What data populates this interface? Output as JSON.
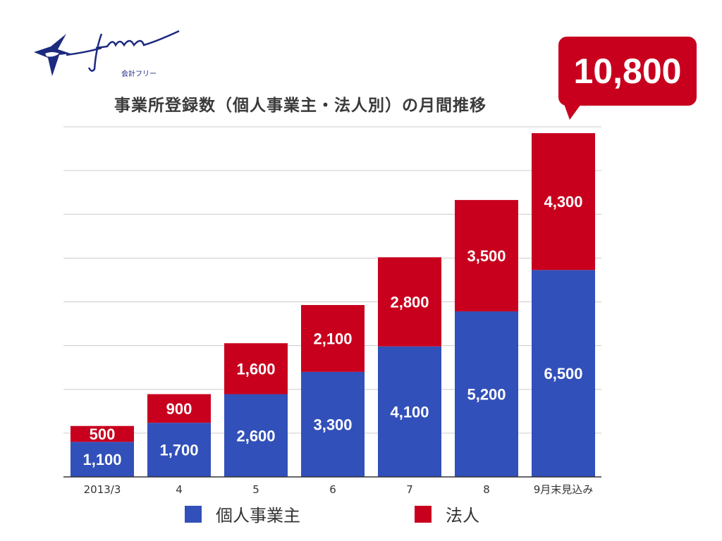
{
  "logo": {
    "text": "freee",
    "subtitle": "会計フリー"
  },
  "callout": {
    "value": "10,800"
  },
  "colors": {
    "individual": "#3250b9",
    "corporate": "#c8001e",
    "callout": "#c8001e",
    "logo": "#1c2a80"
  },
  "chart_data": {
    "type": "bar",
    "stacked": true,
    "title": "事業所登録数（個人事業主・法人別）の月間推移",
    "categories": [
      "2013/3",
      "4",
      "5",
      "6",
      "7",
      "8",
      "9月末見込み"
    ],
    "series": [
      {
        "name": "個人事業主",
        "values": [
          1100,
          1700,
          2600,
          3300,
          4100,
          5200,
          6500
        ],
        "labels": [
          "1,100",
          "1,700",
          "2,600",
          "3,300",
          "4,100",
          "5,200",
          "6,500"
        ]
      },
      {
        "name": "法人",
        "values": [
          500,
          900,
          1600,
          2100,
          2800,
          3500,
          4300
        ],
        "labels": [
          "500",
          "900",
          "1,600",
          "2,100",
          "2,800",
          "3,500",
          "4,300"
        ]
      }
    ],
    "ylim": [
      0,
      11000
    ],
    "grid": true,
    "legend": "bottom",
    "xlabel": "",
    "ylabel": ""
  }
}
